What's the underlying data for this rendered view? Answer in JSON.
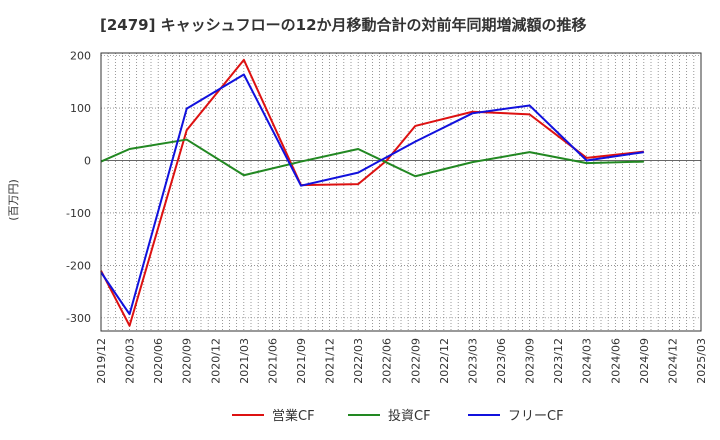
{
  "chart_data": {
    "type": "line",
    "title": "[2479]  キャッシュフローの12か月移動合計の対前年同期増減額の推移",
    "ylabel": "(百万円)",
    "xlabel": "",
    "x_ticks": [
      "2019/12",
      "2020/03",
      "2020/06",
      "2020/09",
      "2020/12",
      "2021/03",
      "2021/06",
      "2021/09",
      "2021/12",
      "2022/03",
      "2022/06",
      "2022/09",
      "2022/12",
      "2023/03",
      "2023/06",
      "2023/09",
      "2023/12",
      "2024/03",
      "2024/06",
      "2024/09",
      "2024/12",
      "2025/03"
    ],
    "y_ticks": [
      200,
      100,
      0,
      -100,
      -200,
      -300
    ],
    "ylim": [
      -325,
      205
    ],
    "grid": true,
    "legend_position": "bottom",
    "series": [
      {
        "name": "営業CF",
        "color": "#dd1111",
        "points": [
          [
            "2019/12",
            -210
          ],
          [
            "2020/03",
            -315
          ],
          [
            "2020/09",
            58
          ],
          [
            "2021/03",
            192
          ],
          [
            "2021/09",
            -47
          ],
          [
            "2022/03",
            -45
          ],
          [
            "2022/06",
            0
          ],
          [
            "2022/09",
            66
          ],
          [
            "2023/03",
            93
          ],
          [
            "2023/09",
            88
          ],
          [
            "2024/03",
            5
          ],
          [
            "2024/09",
            17
          ]
        ]
      },
      {
        "name": "投資CF",
        "color": "#228822",
        "points": [
          [
            "2019/12",
            -2
          ],
          [
            "2020/03",
            22
          ],
          [
            "2020/09",
            40
          ],
          [
            "2021/03",
            -28
          ],
          [
            "2021/09",
            -2
          ],
          [
            "2022/03",
            22
          ],
          [
            "2022/09",
            -30
          ],
          [
            "2023/03",
            -3
          ],
          [
            "2023/09",
            16
          ],
          [
            "2024/03",
            -5
          ],
          [
            "2024/09",
            -2
          ]
        ]
      },
      {
        "name": "フリーCF",
        "color": "#1111dd",
        "points": [
          [
            "2019/12",
            -213
          ],
          [
            "2020/03",
            -293
          ],
          [
            "2020/09",
            99
          ],
          [
            "2021/03",
            164
          ],
          [
            "2021/09",
            -48
          ],
          [
            "2022/03",
            -23
          ],
          [
            "2022/09",
            36
          ],
          [
            "2023/03",
            90
          ],
          [
            "2023/09",
            105
          ],
          [
            "2024/03",
            0
          ],
          [
            "2024/09",
            16
          ]
        ]
      }
    ]
  }
}
